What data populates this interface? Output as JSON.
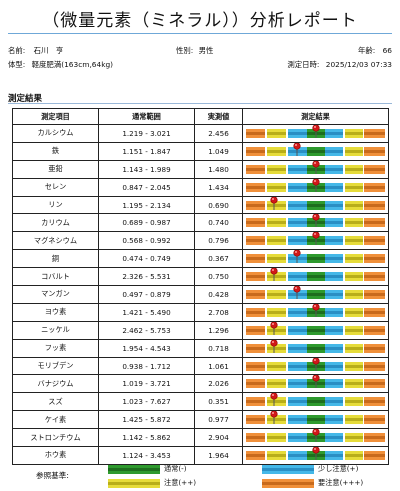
{
  "title": "（微量元素（ミネラル））分析レポート",
  "patient": {
    "name_label": "名前:",
    "name_value": "石川　亨",
    "gender_label": "性別:",
    "gender_value": "男性",
    "age_label": "年齢:",
    "age_value": "66",
    "body_label": "体型:",
    "body_value": "軽度肥満(163cm,64kg)",
    "date_label": "測定日時:",
    "date_value": "2025/12/03 07:33"
  },
  "section_title": "測定結果",
  "table": {
    "headers": [
      "測定項目",
      "通常範囲",
      "実測値",
      "測定結果"
    ],
    "rows": [
      {
        "item": "カルシウム",
        "range": "1.219 - 3.021",
        "value": "2.456",
        "level": 0.5
      },
      {
        "item": "鉄",
        "range": "1.151 - 1.847",
        "value": "1.049",
        "level": 0.37
      },
      {
        "item": "亜鉛",
        "range": "1.143 - 1.989",
        "value": "1.480",
        "level": 0.5
      },
      {
        "item": "セレン",
        "range": "0.847 - 2.045",
        "value": "1.434",
        "level": 0.5
      },
      {
        "item": "リン",
        "range": "1.195 - 2.134",
        "value": "0.690",
        "level": 0.2
      },
      {
        "item": "カリウム",
        "range": "0.689 - 0.987",
        "value": "0.740",
        "level": 0.5
      },
      {
        "item": "マグネシウム",
        "range": "0.568 - 0.992",
        "value": "0.796",
        "level": 0.5
      },
      {
        "item": "銅",
        "range": "0.474 - 0.749",
        "value": "0.367",
        "level": 0.37
      },
      {
        "item": "コバルト",
        "range": "2.326 - 5.531",
        "value": "0.750",
        "level": 0.2
      },
      {
        "item": "マンガン",
        "range": "0.497 - 0.879",
        "value": "0.428",
        "level": 0.37
      },
      {
        "item": "ヨウ素",
        "range": "1.421 - 5.490",
        "value": "2.708",
        "level": 0.5
      },
      {
        "item": "ニッケル",
        "range": "2.462 - 5.753",
        "value": "1.296",
        "level": 0.2
      },
      {
        "item": "フッ素",
        "range": "1.954 - 4.543",
        "value": "0.718",
        "level": 0.2
      },
      {
        "item": "モリブデン",
        "range": "0.938 - 1.712",
        "value": "1.061",
        "level": 0.5
      },
      {
        "item": "バナジウム",
        "range": "1.019 - 3.721",
        "value": "2.026",
        "level": 0.5
      },
      {
        "item": "スズ",
        "range": "1.023 - 7.627",
        "value": "0.351",
        "level": 0.2
      },
      {
        "item": "ケイ素",
        "range": "1.425 - 5.872",
        "value": "0.977",
        "level": 0.2
      },
      {
        "item": "ストロンチウム",
        "range": "1.142 - 5.862",
        "value": "2.904",
        "level": 0.5
      },
      {
        "item": "ホウ素",
        "range": "1.124 - 3.453",
        "value": "1.964",
        "level": 0.5
      }
    ]
  },
  "legend": {
    "label": "参照基準:",
    "items": [
      {
        "text": "通常(-)",
        "color": "#2e9a2e",
        "stripe": "#1e6e1e"
      },
      {
        "text": "少し注意(+)",
        "color": "#45b8e8",
        "stripe": "#2a8fc4"
      },
      {
        "text": "注意(++)",
        "color": "#e6dc3a",
        "stripe": "#b8ae1a"
      },
      {
        "text": "要注意(+++)",
        "color": "#f0903a",
        "stripe": "#c86a1c"
      }
    ]
  },
  "colors": {
    "orange": "#f0903a",
    "orange_stripe": "#c86a1c",
    "yellow": "#e6dc3a",
    "yellow_stripe": "#b8ae1a",
    "blue": "#45b8e8",
    "blue_stripe": "#2a8fc4",
    "green": "#2e9a2e",
    "green_stripe": "#1e6e1e",
    "pin": "#d01818"
  }
}
